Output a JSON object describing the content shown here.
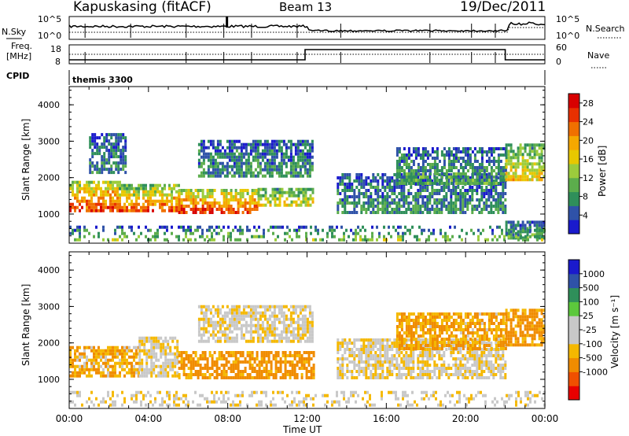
{
  "header": {
    "station": "Kapuskasing (fitACF)",
    "beam": "Beam 13",
    "date": "19/Dec/2011"
  },
  "top_panel": {
    "left_label_1": "N.Sky",
    "left_ticks": [
      "10^5",
      "10^0"
    ],
    "right_ticks": [
      "10^5",
      "10^0"
    ],
    "right_label": "N.Search",
    "freq_label_1": "Freq.",
    "freq_label_2": "[MHz]",
    "freq_ticks": [
      "18",
      "8"
    ],
    "nave_ticks": [
      "60",
      "0"
    ],
    "nave_label": "Nave",
    "cpid_label": "CPID",
    "cpid_value": "themis 3300"
  },
  "colors": {
    "power": [
      "#1a1acc",
      "#2f52a8",
      "#2f8f5a",
      "#5cad4c",
      "#9ccc3c",
      "#e8c800",
      "#f5a800",
      "#f07000",
      "#e83000",
      "#d80000"
    ],
    "velocity": [
      "#e80000",
      "#f05000",
      "#f08c00",
      "#f5b800",
      "#c8c8c8",
      "#c8c8c8",
      "#5cc83c",
      "#2f8f5a",
      "#2f52a8",
      "#1a1acc"
    ],
    "velocity_ground": "#b4b4b4"
  },
  "chart_data": [
    {
      "type": "heatmap",
      "name": "power",
      "ylabel": "Slant Range [km]",
      "xlabel": "Time UT",
      "x_ticks": [
        "00:00",
        "04:00",
        "08:00",
        "12:00",
        "16:00",
        "20:00",
        "00:00"
      ],
      "xlim": [
        0,
        24
      ],
      "y_ticks": [
        "1000",
        "2000",
        "3000",
        "4000"
      ],
      "ylim": [
        200,
        4500
      ],
      "colorbar_label": "Power [dB]",
      "colorbar_ticks": [
        "4",
        "8",
        "12",
        "16",
        "20",
        "24",
        "28"
      ],
      "colorbar_range": [
        0,
        30
      ],
      "regions": [
        {
          "t0": 0.0,
          "t1": 2.5,
          "r0": 1050,
          "r1": 1900,
          "p0": 26,
          "p1": 12
        },
        {
          "t0": 2.5,
          "t1": 5.5,
          "r0": 1050,
          "r1": 1800,
          "p0": 24,
          "p1": 10
        },
        {
          "t0": 5.5,
          "t1": 9.5,
          "r0": 1000,
          "r1": 1650,
          "p0": 26,
          "p1": 12
        },
        {
          "t0": 9.5,
          "t1": 12.3,
          "r0": 1200,
          "r1": 1700,
          "p0": 16,
          "p1": 8
        },
        {
          "t0": 6.5,
          "t1": 12.3,
          "r0": 2000,
          "r1": 3000,
          "p0": 8,
          "p1": 4
        },
        {
          "t0": 1.0,
          "t1": 2.8,
          "r0": 2100,
          "r1": 3200,
          "p0": 8,
          "p1": 4
        },
        {
          "t0": 13.5,
          "t1": 22.0,
          "r0": 1000,
          "r1": 2100,
          "p0": 8,
          "p1": 4
        },
        {
          "t0": 16.5,
          "t1": 22.0,
          "r0": 1800,
          "r1": 2800,
          "p0": 10,
          "p1": 4
        },
        {
          "t0": 22.0,
          "t1": 24.0,
          "r0": 1900,
          "r1": 2900,
          "p0": 18,
          "p1": 8
        },
        {
          "t0": 22.0,
          "t1": 24.0,
          "r0": 300,
          "r1": 800,
          "p0": 10,
          "p1": 4
        },
        {
          "t0": 0.0,
          "t1": 24.0,
          "r0": 250,
          "r1": 600,
          "p0": 12,
          "p1": 4
        }
      ]
    },
    {
      "type": "heatmap",
      "name": "velocity",
      "ylabel": "Slant Range [km]",
      "xlabel": "Time UT",
      "x_ticks": [
        "00:00",
        "04:00",
        "08:00",
        "12:00",
        "16:00",
        "20:00",
        "00:00"
      ],
      "xlim": [
        0,
        24
      ],
      "y_ticks": [
        "1000",
        "2000",
        "3000",
        "4000"
      ],
      "ylim": [
        200,
        4500
      ],
      "colorbar_label": "Velocity [m s⁻¹]",
      "colorbar_ticks": [
        "1000",
        "500",
        "100",
        "25",
        "-25",
        "-100",
        "-500",
        "-1000"
      ],
      "regions": [
        {
          "t0": 0.0,
          "t1": 3.5,
          "r0": 1050,
          "r1": 1900,
          "v": -80
        },
        {
          "t0": 3.5,
          "t1": 5.5,
          "r0": 1050,
          "r1": 2100,
          "v": 0
        },
        {
          "t0": 5.5,
          "t1": 12.3,
          "r0": 1000,
          "r1": 1700,
          "v": -150
        },
        {
          "t0": 6.5,
          "t1": 12.3,
          "r0": 2000,
          "r1": 3000,
          "v": 0
        },
        {
          "t0": 13.5,
          "t1": 22.0,
          "r0": 1000,
          "r1": 2100,
          "v": 0
        },
        {
          "t0": 16.5,
          "t1": 22.0,
          "r0": 1800,
          "r1": 2800,
          "v": -100
        },
        {
          "t0": 22.0,
          "t1": 24.0,
          "r0": 1900,
          "r1": 2900,
          "v": -150
        },
        {
          "t0": 0.0,
          "t1": 24.0,
          "r0": 250,
          "r1": 600,
          "v": 0
        }
      ]
    }
  ]
}
